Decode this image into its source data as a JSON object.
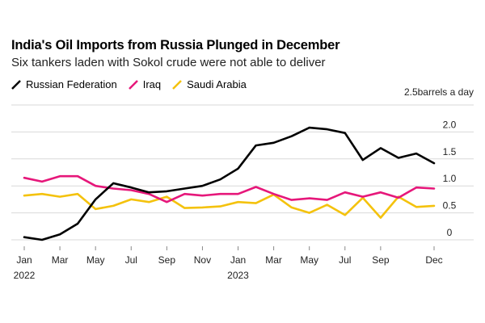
{
  "chart_data": {
    "type": "line",
    "title": "India's Oil Imports from Russia Plunged in December",
    "subtitle": "Six tankers laden with Sokol crude were not able to deliver",
    "ylabel": "2.5barrels a day",
    "ylim": [
      0,
      2.5
    ],
    "yticks": [
      0,
      0.5,
      1.0,
      1.5,
      2.0
    ],
    "ytick_labels": [
      "0",
      "0.5",
      "1.0",
      "1.5",
      "2.0"
    ],
    "x": [
      "2022-01",
      "2022-02",
      "2022-03",
      "2022-04",
      "2022-05",
      "2022-06",
      "2022-07",
      "2022-08",
      "2022-09",
      "2022-10",
      "2022-11",
      "2022-12",
      "2023-01",
      "2023-02",
      "2023-03",
      "2023-04",
      "2023-05",
      "2023-06",
      "2023-07",
      "2023-08",
      "2023-09",
      "2023-10",
      "2023-11",
      "2023-12"
    ],
    "xticks": [
      {
        "month": "2022-01",
        "label": "Jan",
        "sublabel": "2022"
      },
      {
        "month": "2022-03",
        "label": "Mar",
        "sublabel": ""
      },
      {
        "month": "2022-05",
        "label": "May",
        "sublabel": ""
      },
      {
        "month": "2022-07",
        "label": "Jul",
        "sublabel": ""
      },
      {
        "month": "2022-09",
        "label": "Sep",
        "sublabel": ""
      },
      {
        "month": "2022-11",
        "label": "Nov",
        "sublabel": ""
      },
      {
        "month": "2023-01",
        "label": "Jan",
        "sublabel": "2023"
      },
      {
        "month": "2023-03",
        "label": "Mar",
        "sublabel": ""
      },
      {
        "month": "2023-05",
        "label": "May",
        "sublabel": ""
      },
      {
        "month": "2023-07",
        "label": "Jul",
        "sublabel": ""
      },
      {
        "month": "2023-09",
        "label": "Sep",
        "sublabel": ""
      },
      {
        "month": "2023-12",
        "label": "Dec",
        "sublabel": ""
      }
    ],
    "series": [
      {
        "name": "Russian Federation",
        "color": "#000000",
        "values": [
          0.05,
          0.0,
          0.1,
          0.3,
          0.75,
          1.05,
          0.97,
          0.88,
          0.9,
          0.95,
          1.0,
          1.12,
          1.32,
          1.75,
          1.8,
          1.92,
          2.08,
          2.05,
          1.98,
          1.48,
          1.7,
          1.52,
          1.6,
          1.42
        ]
      },
      {
        "name": "Iraq",
        "color": "#e6177a",
        "values": [
          1.15,
          1.08,
          1.18,
          1.18,
          1.0,
          0.95,
          0.92,
          0.85,
          0.7,
          0.85,
          0.82,
          0.85,
          0.85,
          0.98,
          0.85,
          0.74,
          0.77,
          0.74,
          0.88,
          0.8,
          0.88,
          0.78,
          0.97,
          0.95
        ]
      },
      {
        "name": "Saudi Arabia",
        "color": "#f4c20d",
        "values": [
          0.82,
          0.85,
          0.8,
          0.85,
          0.57,
          0.63,
          0.75,
          0.7,
          0.8,
          0.59,
          0.6,
          0.62,
          0.7,
          0.68,
          0.84,
          0.6,
          0.5,
          0.65,
          0.46,
          0.78,
          0.41,
          0.8,
          0.61,
          0.63
        ]
      }
    ],
    "grid": true,
    "legend": "top-left"
  }
}
